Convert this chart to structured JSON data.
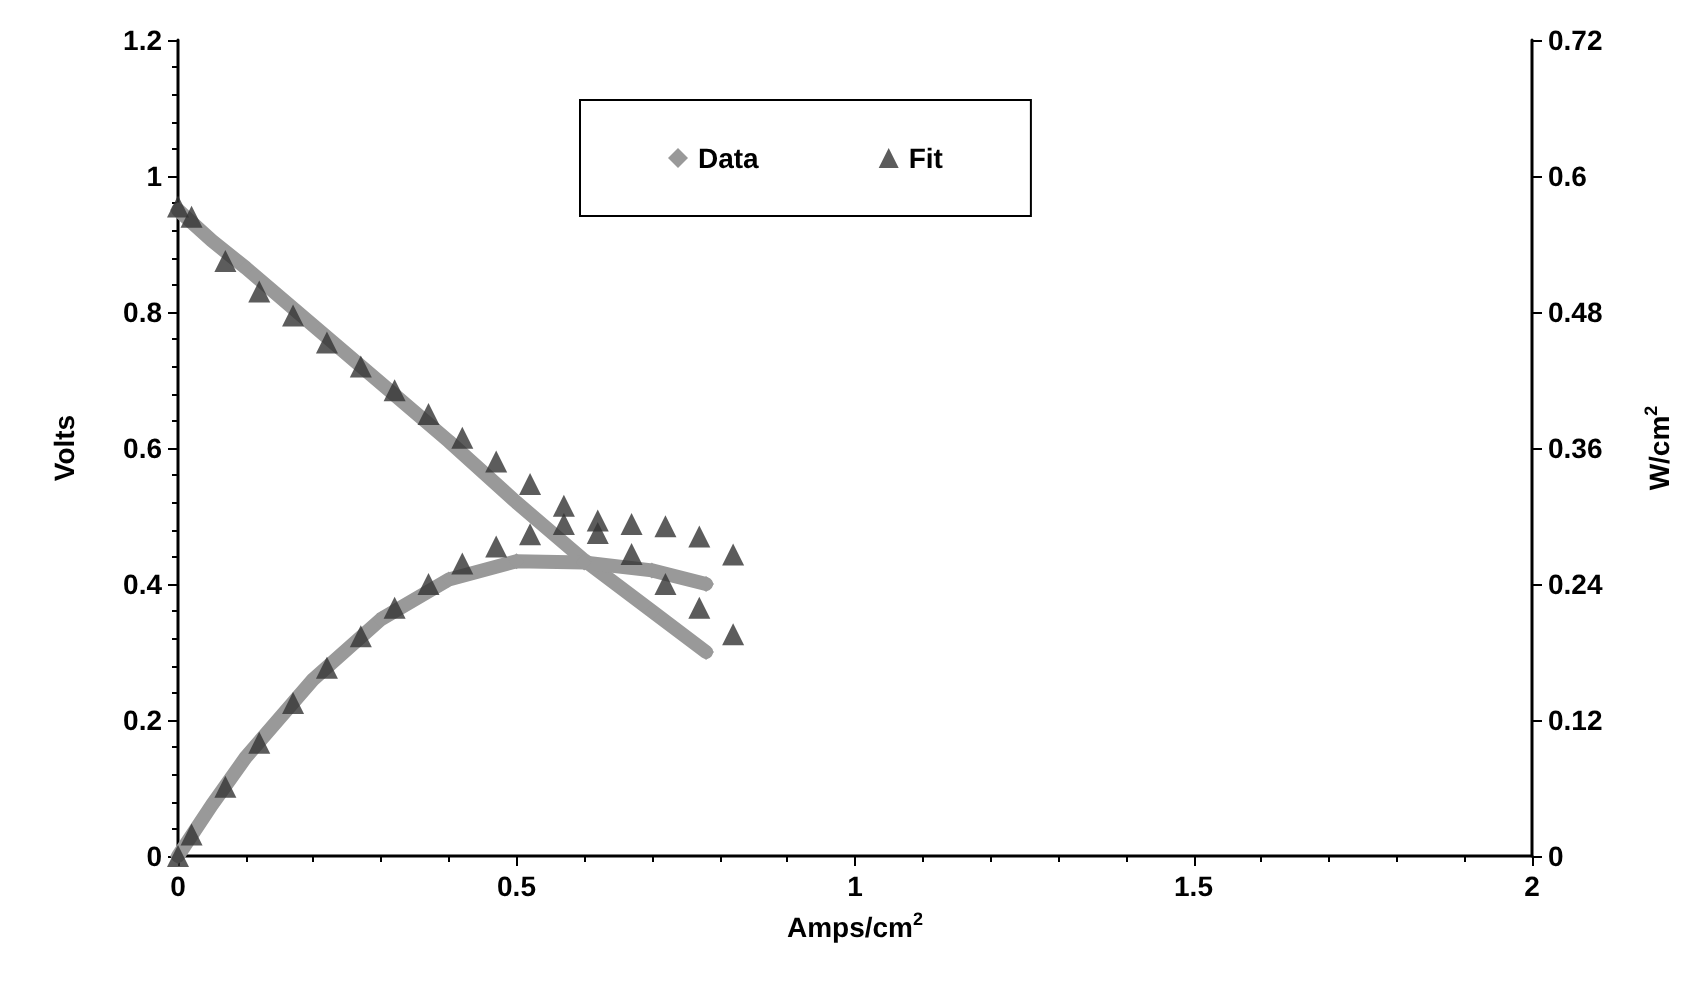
{
  "chart_data": {
    "type": "line",
    "xlabel": "Amps/cm$^{2}$",
    "ylabel": "Volts",
    "y2label": "W/cm$^{2}$",
    "xlim": [
      0,
      2
    ],
    "xticks": [
      0,
      0.5,
      1,
      1.5,
      2
    ],
    "ylim": [
      0,
      1.2
    ],
    "yticks": [
      0,
      0.2,
      0.4,
      0.6,
      0.8,
      1,
      1.2
    ],
    "y2lim": [
      0,
      0.72
    ],
    "y2ticks": [
      0,
      0.12,
      0.24,
      0.36,
      0.48,
      0.6,
      0.72
    ],
    "grid": false,
    "legend": "top",
    "series": [
      {
        "name": "Data",
        "marker": "diamond",
        "color": "#999999",
        "x": [
          0,
          0.05,
          0.1,
          0.2,
          0.3,
          0.4,
          0.5,
          0.6,
          0.7,
          0.78
        ],
        "values": [
          0.95,
          0.905,
          0.865,
          0.78,
          0.695,
          0.61,
          0.52,
          0.435,
          0.36,
          0.3
        ]
      },
      {
        "marker": "diamond",
        "color": "#999999",
        "axis": "y2",
        "x": [
          0,
          0.05,
          0.1,
          0.2,
          0.3,
          0.4,
          0.5,
          0.6,
          0.7,
          0.78
        ],
        "values": [
          0,
          0.045,
          0.087,
          0.156,
          0.209,
          0.244,
          0.26,
          0.259,
          0.252,
          0.24
        ]
      },
      {
        "name": "Fit",
        "type": "scatter",
        "marker": "triangle",
        "color": "#333333",
        "x": [
          0,
          0.02,
          0.07,
          0.12,
          0.17,
          0.22,
          0.27,
          0.32,
          0.37,
          0.42,
          0.47,
          0.52,
          0.57,
          0.62,
          0.67,
          0.72,
          0.77,
          0.82
        ],
        "values": [
          0.955,
          0.94,
          0.875,
          0.83,
          0.795,
          0.755,
          0.72,
          0.685,
          0.65,
          0.615,
          0.58,
          0.547,
          0.515,
          0.475,
          0.444,
          0.4,
          0.365,
          0.326
        ]
      },
      {
        "type": "scatter",
        "marker": "triangle",
        "color": "#333333",
        "axis": "y2",
        "x": [
          0,
          0.02,
          0.07,
          0.12,
          0.17,
          0.22,
          0.27,
          0.32,
          0.37,
          0.42,
          0.47,
          0.52,
          0.57,
          0.62,
          0.67,
          0.72,
          0.77,
          0.82
        ],
        "values": [
          0,
          0.019,
          0.061,
          0.1,
          0.135,
          0.166,
          0.194,
          0.219,
          0.24,
          0.258,
          0.273,
          0.284,
          0.293,
          0.296,
          0.293,
          0.291,
          0.282,
          0.266
        ]
      }
    ]
  }
}
